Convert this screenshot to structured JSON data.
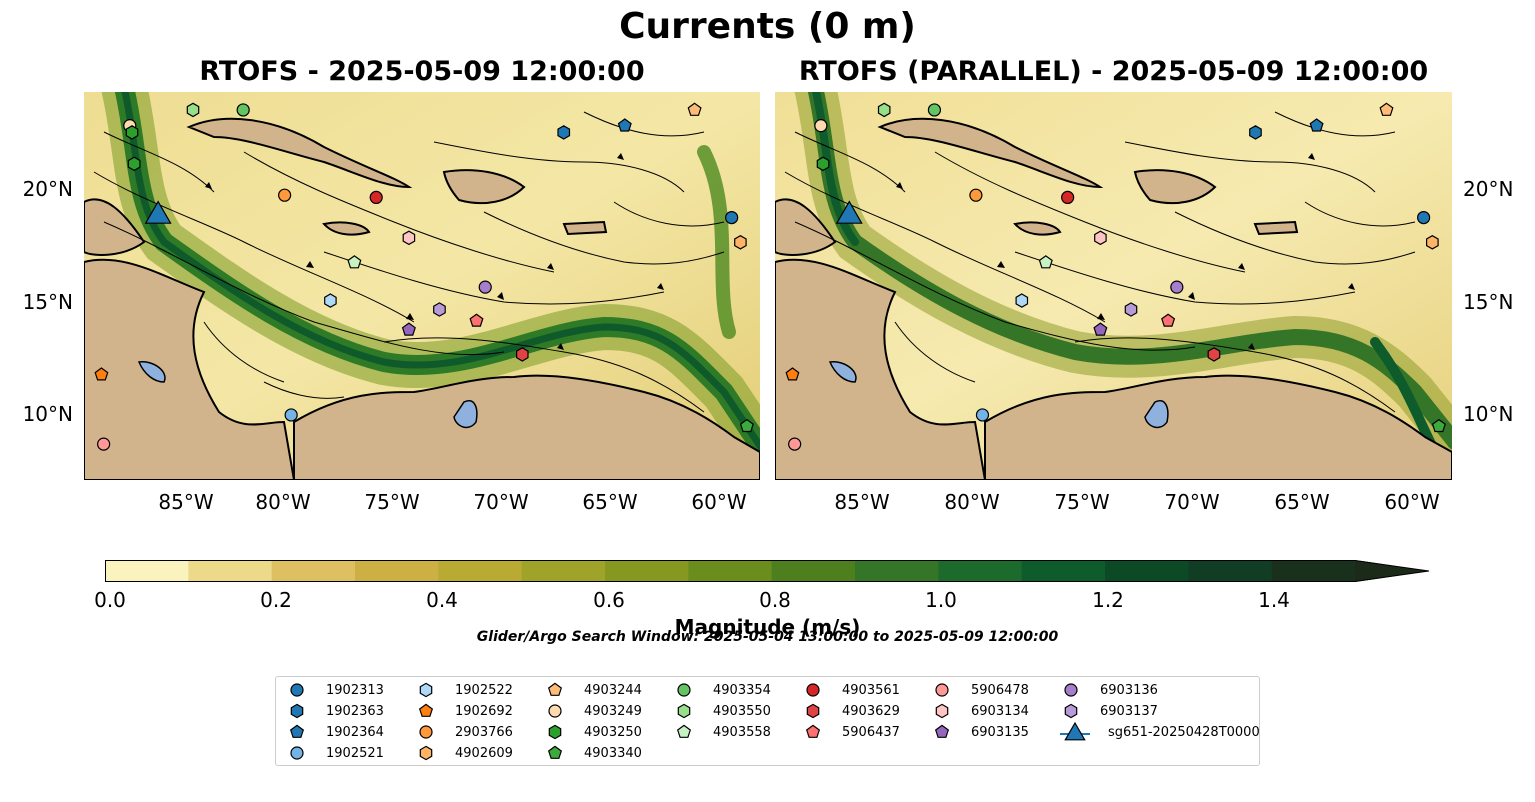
{
  "figure": {
    "title": "Currents (0 m)",
    "panel_left_title": "RTOFS - 2025-05-09 12:00:00",
    "panel_right_title": "RTOFS (PARALLEL) - 2025-05-09 12:00:00",
    "x_ticks": [
      "85°W",
      "80°W",
      "75°W",
      "70°W",
      "65°W",
      "60°W"
    ],
    "y_ticks": [
      "20°N",
      "15°N",
      "10°N"
    ],
    "lon_range": [
      -89,
      -58
    ],
    "lat_range": [
      7,
      24.3
    ],
    "colorbar_label": "Magnitude (m/s)",
    "colorbar_ticks": [
      "0.0",
      "0.2",
      "0.4",
      "0.6",
      "0.8",
      "1.0",
      "1.2",
      "1.4"
    ],
    "colorbar_range": [
      0,
      1.5
    ],
    "search_window": "Glider/Argo Search Window: 2025-05-04 13:00:00 to 2025-05-09 12:00:00"
  },
  "colors": {
    "land": "#d2b48c",
    "lake": "#8fb1de",
    "colorbar": [
      "#fbf3bd",
      "#ecd98a",
      "#ddc062",
      "#cdb043",
      "#b9aa33",
      "#9fa32a",
      "#86981f",
      "#6b8d1e",
      "#4d7f1f",
      "#357527",
      "#1c6a2c",
      "#0e5c2b",
      "#0c4a26",
      "#123d25",
      "#19301d",
      "#1c2a19"
    ]
  },
  "legend": [
    {
      "label": "1902313",
      "color": "#1f77b4",
      "marker": "circle"
    },
    {
      "label": "1902363",
      "color": "#1f77b4",
      "marker": "hexagon"
    },
    {
      "label": "1902364",
      "color": "#1f77b4",
      "marker": "pentagon"
    },
    {
      "label": "1902521",
      "color": "#74b3e6",
      "marker": "circle"
    },
    {
      "label": "1902522",
      "color": "#aed8f5",
      "marker": "hexagon"
    },
    {
      "label": "1902692",
      "color": "#ff7f0e",
      "marker": "pentagon"
    },
    {
      "label": "2903766",
      "color": "#ff9a3c",
      "marker": "circle"
    },
    {
      "label": "4902609",
      "color": "#ffb366",
      "marker": "hexagon"
    },
    {
      "label": "4903244",
      "color": "#ffbb78",
      "marker": "pentagon"
    },
    {
      "label": "4903249",
      "color": "#ffd9b0",
      "marker": "circle"
    },
    {
      "label": "4903250",
      "color": "#2ca02c",
      "marker": "hexagon"
    },
    {
      "label": "4903340",
      "color": "#3daa3d",
      "marker": "pentagon"
    },
    {
      "label": "4903354",
      "color": "#62c462",
      "marker": "circle"
    },
    {
      "label": "4903550",
      "color": "#98df8a",
      "marker": "hexagon"
    },
    {
      "label": "4903558",
      "color": "#c7f3c2",
      "marker": "pentagon"
    },
    {
      "label": "4903561",
      "color": "#d62728",
      "marker": "circle"
    },
    {
      "label": "4903629",
      "color": "#e04344",
      "marker": "hexagon"
    },
    {
      "label": "5906437",
      "color": "#ff7070",
      "marker": "pentagon"
    },
    {
      "label": "5906478",
      "color": "#ff9896",
      "marker": "circle"
    },
    {
      "label": "6903134",
      "color": "#ffc5c4",
      "marker": "hexagon"
    },
    {
      "label": "6903135",
      "color": "#9467bd",
      "marker": "pentagon"
    },
    {
      "label": "6903136",
      "color": "#a67fcc",
      "marker": "circle"
    },
    {
      "label": "6903137",
      "color": "#b99ad8",
      "marker": "hexagon"
    },
    {
      "label": "sg651-20250428T0000",
      "color": "#1f77b4",
      "marker": "triangle"
    }
  ],
  "map_markers_left": [
    {
      "id": "1902313",
      "lon": -59.3,
      "lat": 18.7
    },
    {
      "id": "1902363",
      "lon": -67.0,
      "lat": 22.5
    },
    {
      "id": "1902364",
      "lon": -64.2,
      "lat": 22.8
    },
    {
      "id": "1902521",
      "lon": -79.5,
      "lat": 9.9
    },
    {
      "id": "1902522",
      "lon": -77.7,
      "lat": 15.0
    },
    {
      "id": "1902692",
      "lon": -88.2,
      "lat": 11.7
    },
    {
      "id": "2903766",
      "lon": -79.8,
      "lat": 19.7
    },
    {
      "id": "4902609",
      "lon": -58.9,
      "lat": 17.6
    },
    {
      "id": "4903244",
      "lon": -61.0,
      "lat": 23.5
    },
    {
      "id": "4903249",
      "lon": -86.9,
      "lat": 22.8
    },
    {
      "id": "4903250",
      "lon": -86.8,
      "lat": 22.5
    },
    {
      "id": "4903340",
      "lon": -58.6,
      "lat": 9.4
    },
    {
      "id": "4903354",
      "lon": -81.7,
      "lat": 23.5
    },
    {
      "id": "4903550",
      "lon": -84.0,
      "lat": 23.5
    },
    {
      "id": "4903558",
      "lon": -76.6,
      "lat": 16.7
    },
    {
      "id": "4903561",
      "lon": -75.6,
      "lat": 19.6
    },
    {
      "id": "4903629",
      "lon": -68.9,
      "lat": 12.6
    },
    {
      "id": "5906437",
      "lon": -71.0,
      "lat": 14.1
    },
    {
      "id": "5906478",
      "lon": -88.1,
      "lat": 8.6
    },
    {
      "id": "6903134",
      "lon": -74.1,
      "lat": 17.8
    },
    {
      "id": "6903135",
      "lon": -74.1,
      "lat": 13.7
    },
    {
      "id": "6903136",
      "lon": -70.6,
      "lat": 15.6
    },
    {
      "id": "6903137",
      "lon": -72.7,
      "lat": 14.6
    },
    {
      "id": "4903250b",
      "lon": -86.7,
      "lat": 21.1
    },
    {
      "id": "sg651-20250428T0000",
      "lon": -85.6,
      "lat": 18.9
    }
  ],
  "map_markers_right": [
    {
      "id": "1902313",
      "lon": -59.3,
      "lat": 18.7
    },
    {
      "id": "1902363",
      "lon": -67.0,
      "lat": 22.5
    },
    {
      "id": "1902364",
      "lon": -64.2,
      "lat": 22.8
    },
    {
      "id": "1902521",
      "lon": -79.5,
      "lat": 9.9
    },
    {
      "id": "1902522",
      "lon": -77.7,
      "lat": 15.0
    },
    {
      "id": "1902692",
      "lon": -88.2,
      "lat": 11.7
    },
    {
      "id": "2903766",
      "lon": -79.8,
      "lat": 19.7
    },
    {
      "id": "4902609",
      "lon": -58.9,
      "lat": 17.6
    },
    {
      "id": "4903244",
      "lon": -61.0,
      "lat": 23.5
    },
    {
      "id": "4903249",
      "lon": -86.9,
      "lat": 22.8
    },
    {
      "id": "4903250",
      "lon": -86.8,
      "lat": 21.1
    },
    {
      "id": "4903340",
      "lon": -58.6,
      "lat": 9.4
    },
    {
      "id": "4903354",
      "lon": -81.7,
      "lat": 23.5
    },
    {
      "id": "4903550",
      "lon": -84.0,
      "lat": 23.5
    },
    {
      "id": "4903558",
      "lon": -76.6,
      "lat": 16.7
    },
    {
      "id": "4903561",
      "lon": -75.6,
      "lat": 19.6
    },
    {
      "id": "4903629",
      "lon": -68.9,
      "lat": 12.6
    },
    {
      "id": "5906437",
      "lon": -71.0,
      "lat": 14.1
    },
    {
      "id": "5906478",
      "lon": -88.1,
      "lat": 8.6
    },
    {
      "id": "6903134",
      "lon": -74.1,
      "lat": 17.8
    },
    {
      "id": "6903135",
      "lon": -74.1,
      "lat": 13.7
    },
    {
      "id": "6903136",
      "lon": -70.6,
      "lat": 15.6
    },
    {
      "id": "6903137",
      "lon": -72.7,
      "lat": 14.6
    },
    {
      "id": "sg651-20250428T0000",
      "lon": -85.6,
      "lat": 18.9
    }
  ]
}
